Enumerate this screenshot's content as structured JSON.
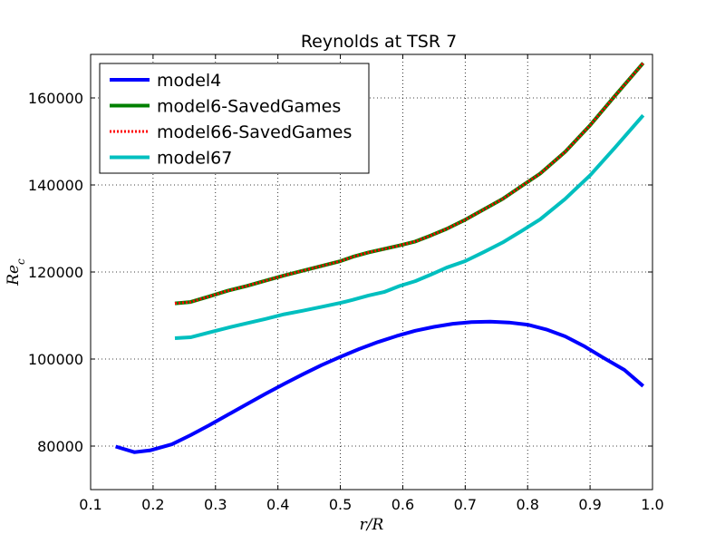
{
  "chart_data": {
    "type": "line",
    "title": "Reynolds at TSR 7",
    "xlabel": "r/R",
    "ylabel": "Re_c",
    "xlim": [
      0.1,
      1.0
    ],
    "ylim": [
      70000,
      170000
    ],
    "xticks": [
      "0.1",
      "0.2",
      "0.3",
      "0.4",
      "0.5",
      "0.6",
      "0.7",
      "0.8",
      "0.9",
      "1.0"
    ],
    "yticks": [
      "80000",
      "100000",
      "120000",
      "140000",
      "160000"
    ],
    "grid": true,
    "legend_position": "top-left",
    "series": [
      {
        "name": "model4",
        "color": "#0000ff",
        "style": "solid",
        "x": [
          0.14,
          0.17,
          0.195,
          0.23,
          0.26,
          0.29,
          0.32,
          0.35,
          0.38,
          0.41,
          0.44,
          0.47,
          0.5,
          0.53,
          0.56,
          0.59,
          0.62,
          0.65,
          0.68,
          0.71,
          0.74,
          0.77,
          0.8,
          0.83,
          0.86,
          0.89,
          0.92,
          0.955,
          0.985
        ],
        "y": [
          79900,
          78600,
          79000,
          80400,
          82500,
          84800,
          87200,
          89600,
          92000,
          94300,
          96500,
          98600,
          100500,
          102300,
          103900,
          105300,
          106500,
          107400,
          108100,
          108500,
          108600,
          108400,
          107900,
          106800,
          105200,
          103000,
          100400,
          97500,
          93800
        ]
      },
      {
        "name": "model6-SavedGames",
        "color": "#008000",
        "style": "solid",
        "x": [
          0.235,
          0.26,
          0.29,
          0.32,
          0.35,
          0.38,
          0.41,
          0.44,
          0.47,
          0.5,
          0.52,
          0.545,
          0.57,
          0.595,
          0.62,
          0.645,
          0.67,
          0.7,
          0.73,
          0.76,
          0.79,
          0.82,
          0.86,
          0.9,
          0.94,
          0.985
        ],
        "y": [
          112800,
          113100,
          114400,
          115700,
          116800,
          118000,
          119200,
          120300,
          121400,
          122500,
          123500,
          124500,
          125300,
          126100,
          127000,
          128400,
          129900,
          132000,
          134400,
          136800,
          139700,
          142600,
          147600,
          153700,
          160500,
          168000
        ]
      },
      {
        "name": "model66-SavedGames",
        "color": "#ff0000",
        "style": "dotted",
        "x": [
          0.235,
          0.26,
          0.29,
          0.32,
          0.35,
          0.38,
          0.41,
          0.44,
          0.47,
          0.5,
          0.52,
          0.545,
          0.57,
          0.595,
          0.62,
          0.645,
          0.67,
          0.7,
          0.73,
          0.76,
          0.79,
          0.82,
          0.86,
          0.9,
          0.94,
          0.985
        ],
        "y": [
          112800,
          113100,
          114400,
          115700,
          116800,
          118000,
          119200,
          120300,
          121400,
          122500,
          123500,
          124500,
          125300,
          126100,
          127000,
          128400,
          129900,
          132000,
          134400,
          136800,
          139700,
          142600,
          147600,
          153700,
          160500,
          168000
        ]
      },
      {
        "name": "model67",
        "color": "#00bfbf",
        "style": "solid",
        "x": [
          0.235,
          0.26,
          0.29,
          0.32,
          0.35,
          0.38,
          0.41,
          0.44,
          0.47,
          0.5,
          0.52,
          0.545,
          0.57,
          0.595,
          0.62,
          0.645,
          0.67,
          0.7,
          0.73,
          0.76,
          0.79,
          0.82,
          0.86,
          0.9,
          0.94,
          0.985
        ],
        "y": [
          104800,
          105000,
          106100,
          107200,
          108200,
          109200,
          110300,
          111100,
          112000,
          112900,
          113600,
          114600,
          115400,
          116800,
          117900,
          119400,
          121000,
          122500,
          124600,
          126800,
          129400,
          132100,
          136800,
          142200,
          148600,
          156000
        ]
      }
    ]
  }
}
